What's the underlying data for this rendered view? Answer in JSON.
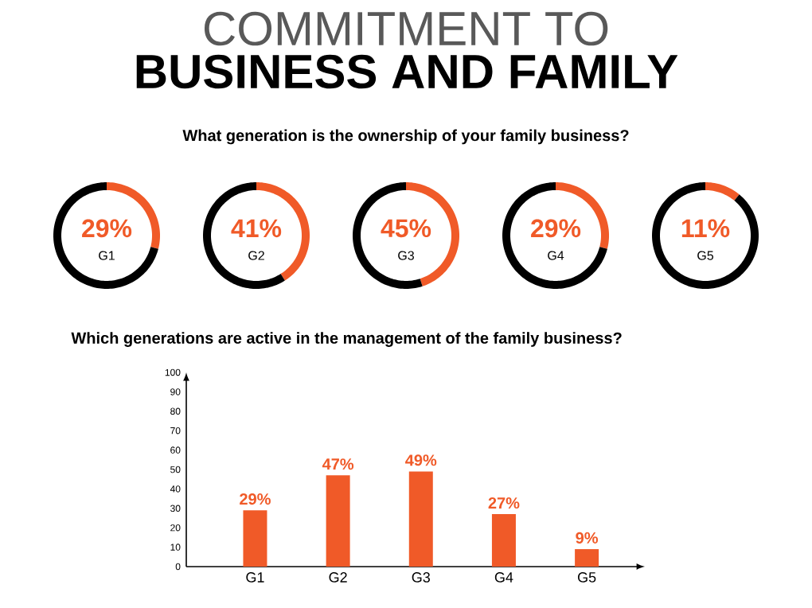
{
  "chart_data": [
    {
      "type": "other",
      "title": "COMMITMENT TO",
      "subtitle": "BUSINESS AND FAMILY",
      "annotations": [
        "What generation is the ownership of your family business?"
      ]
    },
    {
      "type": "donut",
      "title": "G1",
      "categories": [
        null,
        null
      ],
      "values": [
        29,
        71
      ],
      "colors": [
        "#f05a28",
        "#000000"
      ],
      "value_labels": [
        "29%",
        null
      ]
    },
    {
      "type": "donut",
      "title": "G2",
      "categories": [
        null,
        null
      ],
      "values": [
        41,
        59
      ],
      "colors": [
        "#f05a28",
        "#000000"
      ],
      "value_labels": [
        "41%",
        null
      ]
    },
    {
      "type": "donut",
      "title": "G3",
      "categories": [
        null,
        null
      ],
      "values": [
        45,
        55
      ],
      "colors": [
        "#f05a28",
        "#000000"
      ],
      "value_labels": [
        "45%",
        null
      ]
    },
    {
      "type": "donut",
      "title": "G4",
      "categories": [
        null,
        null
      ],
      "values": [
        29,
        71
      ],
      "colors": [
        "#f05a28",
        "#000000"
      ],
      "value_labels": [
        "29%",
        null
      ]
    },
    {
      "type": "donut",
      "title": "G5",
      "categories": [
        null,
        null
      ],
      "values": [
        11,
        89
      ],
      "colors": [
        "#f05a28",
        "#000000"
      ],
      "value_labels": [
        "11%",
        null
      ]
    },
    {
      "type": "bar",
      "title": "Which generations are active in the management of the family business?",
      "categories": [
        "G1",
        "G2",
        "G3",
        "G4",
        "G5"
      ],
      "values": [
        29,
        47,
        49,
        27,
        9
      ],
      "color": "#f05a28",
      "value_labels": [
        "29%",
        "47%",
        "49%",
        "27%",
        "9%"
      ],
      "ylim": [
        0,
        100
      ],
      "yticks": [
        0,
        10,
        20,
        30,
        40,
        50,
        60,
        70,
        80,
        90,
        100
      ]
    }
  ]
}
